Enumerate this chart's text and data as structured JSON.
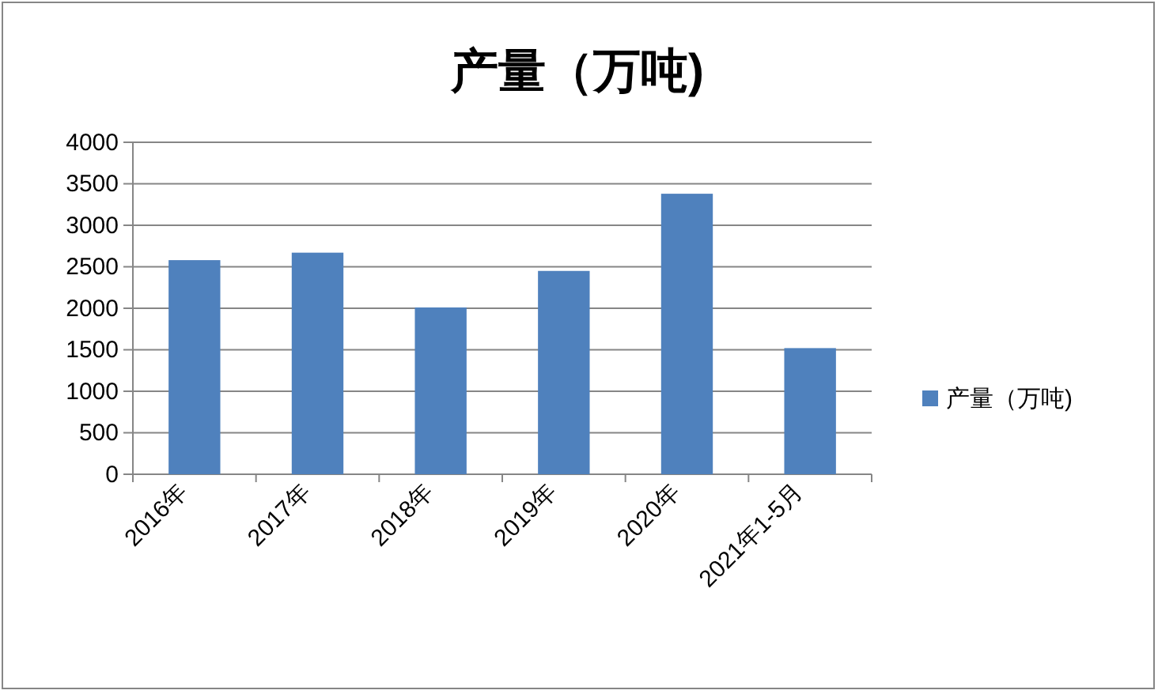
{
  "chart_data": {
    "type": "bar",
    "title": "产量（万吨)",
    "categories": [
      "2016年",
      "2017年",
      "2018年",
      "2019年",
      "2020年",
      "2021年1-5月"
    ],
    "series": [
      {
        "name": "产量（万吨)",
        "color": "#4f81bd",
        "values": [
          2580,
          2670,
          2010,
          2450,
          3380,
          1520
        ]
      }
    ],
    "ylim": [
      0,
      4000
    ],
    "yticks": [
      0,
      500,
      1000,
      1500,
      2000,
      2500,
      3000,
      3500,
      4000
    ],
    "grid": "y",
    "legend": "right"
  }
}
